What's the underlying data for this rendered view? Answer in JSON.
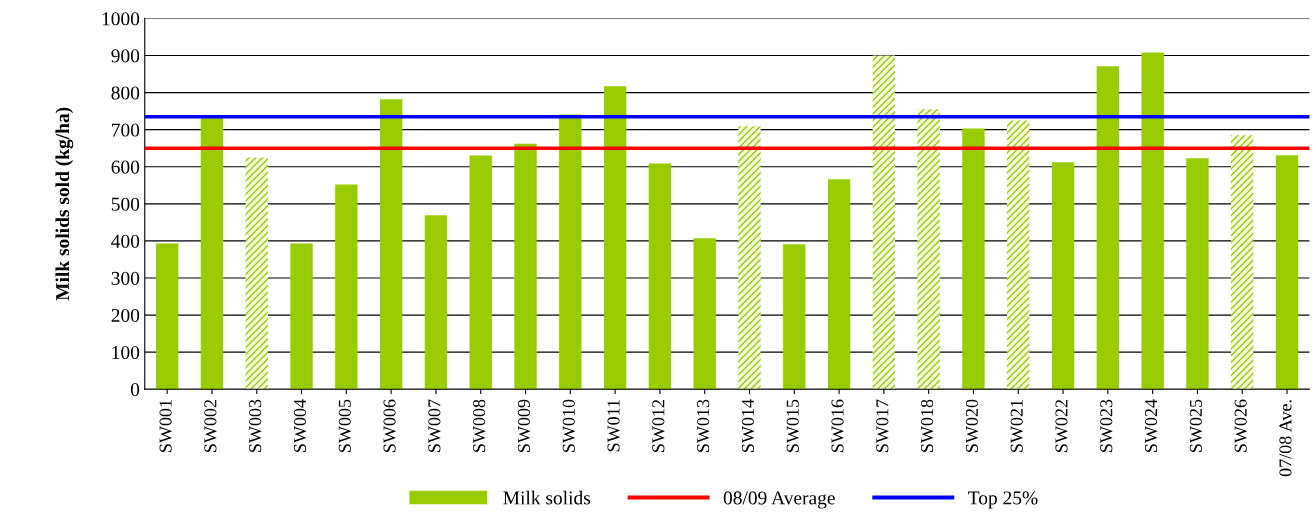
{
  "chart_data": {
    "type": "bar",
    "ylabel": "Milk solids sold (kg/ha)",
    "categories": [
      "SW001",
      "SW002",
      "SW003",
      "SW004",
      "SW005",
      "SW006",
      "SW007",
      "SW008",
      "SW009",
      "SW010",
      "SW011",
      "SW012",
      "SW013",
      "SW014",
      "SW015",
      "SW016",
      "SW017",
      "SW018",
      "SW020",
      "SW021",
      "SW022",
      "SW023",
      "SW024",
      "SW025",
      "SW026",
      "07/08 Ave."
    ],
    "series": [
      {
        "name": "Milk solids",
        "color": "#99cc00",
        "colors": [
          "#99cc00",
          "#99cc00",
          "#cce680",
          "#99cc00",
          "#99cc00",
          "#99cc00",
          "#99cc00",
          "#99cc00",
          "#99cc00",
          "#99cc00",
          "#99cc00",
          "#99cc00",
          "#99cc00",
          "#cce680",
          "#99cc00",
          "#99cc00",
          "#cce680",
          "#cce680",
          "#99cc00",
          "#cce680",
          "#99cc00",
          "#99cc00",
          "#99cc00",
          "#99cc00",
          "#cce680",
          "#99cc00"
        ],
        "values": [
          393,
          733,
          625,
          393,
          552,
          782,
          469,
          630,
          662,
          741,
          817,
          609,
          407,
          709,
          391,
          566,
          900,
          755,
          703,
          725,
          612,
          871,
          908,
          623,
          685,
          631
        ]
      }
    ],
    "ref_lines": [
      {
        "axis": "y",
        "value": 650,
        "label": "08/09 Average",
        "color": "#ff0000"
      },
      {
        "axis": "y",
        "value": 735,
        "label": "Top 25%",
        "color": "#0000ff"
      }
    ],
    "ylim": [
      0,
      1000
    ],
    "yticks": [
      0,
      100,
      200,
      300,
      400,
      500,
      600,
      700,
      800,
      900,
      1000
    ],
    "grid": "y",
    "legend": "bottom"
  }
}
